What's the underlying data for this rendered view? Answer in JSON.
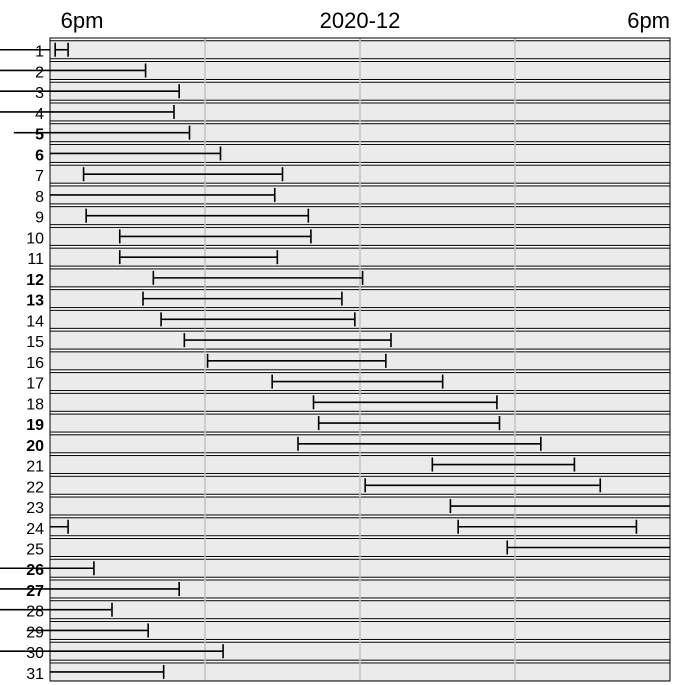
{
  "chart_data": {
    "type": "timeline",
    "title": "2020-12",
    "time_labels": {
      "left": "6pm",
      "right": "6pm"
    },
    "grid": true,
    "rows": [
      {
        "day": "1",
        "bold": false,
        "segments": [
          [
            18.2,
            18.7
          ],
          [
            11.3,
            18.0
          ]
        ]
      },
      {
        "day": "2",
        "bold": false,
        "segments": [
          [
            18.0,
            21.7
          ],
          [
            14.0,
            18.0
          ]
        ]
      },
      {
        "day": "3",
        "bold": false,
        "segments": [
          [
            18.0,
            23.0
          ],
          [
            14.7,
            18.0
          ]
        ]
      },
      {
        "day": "4",
        "bold": false,
        "segments": [
          [
            18.0,
            22.8
          ],
          [
            14.0,
            18.0
          ]
        ]
      },
      {
        "day": "5",
        "bold": true,
        "segments": [
          [
            18.0,
            23.4
          ],
          [
            16.6,
            18.0
          ]
        ]
      },
      {
        "day": "6",
        "bold": true,
        "segments": [
          [
            18.0,
            24.6
          ]
        ]
      },
      {
        "day": "7",
        "bold": false,
        "segments": [
          [
            19.3,
            27.0
          ]
        ]
      },
      {
        "day": "8",
        "bold": false,
        "segments": [
          [
            18.0,
            26.7
          ]
        ]
      },
      {
        "day": "9",
        "bold": false,
        "segments": [
          [
            19.4,
            28.0
          ]
        ]
      },
      {
        "day": "10",
        "bold": false,
        "segments": [
          [
            20.7,
            28.1
          ]
        ]
      },
      {
        "day": "11",
        "bold": false,
        "segments": [
          [
            20.7,
            26.8
          ]
        ]
      },
      {
        "day": "12",
        "bold": true,
        "segments": [
          [
            22.0,
            30.1
          ]
        ]
      },
      {
        "day": "13",
        "bold": true,
        "segments": [
          [
            21.6,
            29.3
          ]
        ]
      },
      {
        "day": "14",
        "bold": false,
        "segments": [
          [
            22.3,
            29.8
          ]
        ]
      },
      {
        "day": "15",
        "bold": false,
        "segments": [
          [
            23.2,
            31.2
          ]
        ]
      },
      {
        "day": "16",
        "bold": false,
        "segments": [
          [
            24.1,
            31.0
          ]
        ]
      },
      {
        "day": "17",
        "bold": false,
        "segments": [
          [
            26.6,
            33.2
          ]
        ]
      },
      {
        "day": "18",
        "bold": false,
        "segments": [
          [
            28.2,
            35.3
          ]
        ]
      },
      {
        "day": "19",
        "bold": true,
        "segments": [
          [
            28.4,
            35.4
          ]
        ]
      },
      {
        "day": "20",
        "bold": true,
        "segments": [
          [
            27.6,
            37.0
          ]
        ]
      },
      {
        "day": "21",
        "bold": false,
        "segments": [
          [
            32.8,
            38.3
          ]
        ]
      },
      {
        "day": "22",
        "bold": false,
        "segments": [
          [
            30.2,
            39.3
          ]
        ]
      },
      {
        "day": "23",
        "bold": false,
        "segments": [
          [
            33.5,
            42.0
          ]
        ]
      },
      {
        "day": "24",
        "bold": false,
        "segments": [
          [
            18.0,
            18.7
          ],
          [
            33.8,
            40.7
          ]
        ]
      },
      {
        "day": "25",
        "bold": false,
        "segments": [
          [
            35.7,
            42.0
          ]
        ]
      },
      {
        "day": "26",
        "bold": true,
        "segments": [
          [
            18.0,
            19.7
          ],
          [
            13.9,
            18.0
          ]
        ]
      },
      {
        "day": "27",
        "bold": true,
        "segments": [
          [
            18.0,
            23.0
          ],
          [
            14.3,
            18.0
          ]
        ]
      },
      {
        "day": "28",
        "bold": false,
        "segments": [
          [
            18.0,
            20.4
          ],
          [
            14.0,
            18.0
          ]
        ]
      },
      {
        "day": "29",
        "bold": false,
        "segments": [
          [
            18.0,
            21.8
          ],
          [
            17.1,
            18.0
          ]
        ]
      },
      {
        "day": "30",
        "bold": false,
        "segments": [
          [
            18.0,
            24.7
          ],
          [
            14.5,
            18.0
          ]
        ]
      },
      {
        "day": "31",
        "bold": false,
        "segments": [
          [
            18.0,
            22.4
          ]
        ]
      }
    ]
  }
}
